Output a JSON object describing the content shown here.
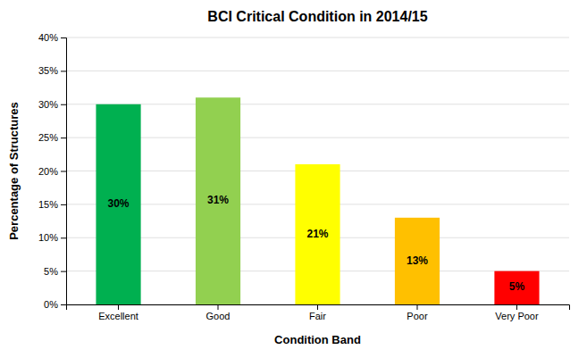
{
  "chart_data": {
    "type": "bar",
    "title": "BCI Critical Condition in 2014/15",
    "xlabel": "Condition Band",
    "ylabel": "Percentage of Structures",
    "categories": [
      "Excellent",
      "Good",
      "Fair",
      "Poor",
      "Very Poor"
    ],
    "values": [
      30,
      31,
      21,
      13,
      5
    ],
    "value_labels": [
      "30%",
      "31%",
      "21%",
      "13%",
      "5%"
    ],
    "colors": [
      "#00b050",
      "#92d050",
      "#ffff00",
      "#ffc000",
      "#ff0000"
    ],
    "ylim": [
      0,
      40
    ],
    "yticks": [
      {
        "value": 0,
        "label": "0%"
      },
      {
        "value": 5,
        "label": "5%"
      },
      {
        "value": 10,
        "label": "10%"
      },
      {
        "value": 15,
        "label": "15%"
      },
      {
        "value": 20,
        "label": "20%"
      },
      {
        "value": 25,
        "label": "25%"
      },
      {
        "value": 30,
        "label": "30%"
      },
      {
        "value": 35,
        "label": "35%"
      },
      {
        "value": 40,
        "label": "40%"
      }
    ],
    "grid": true,
    "data_labels": true
  }
}
